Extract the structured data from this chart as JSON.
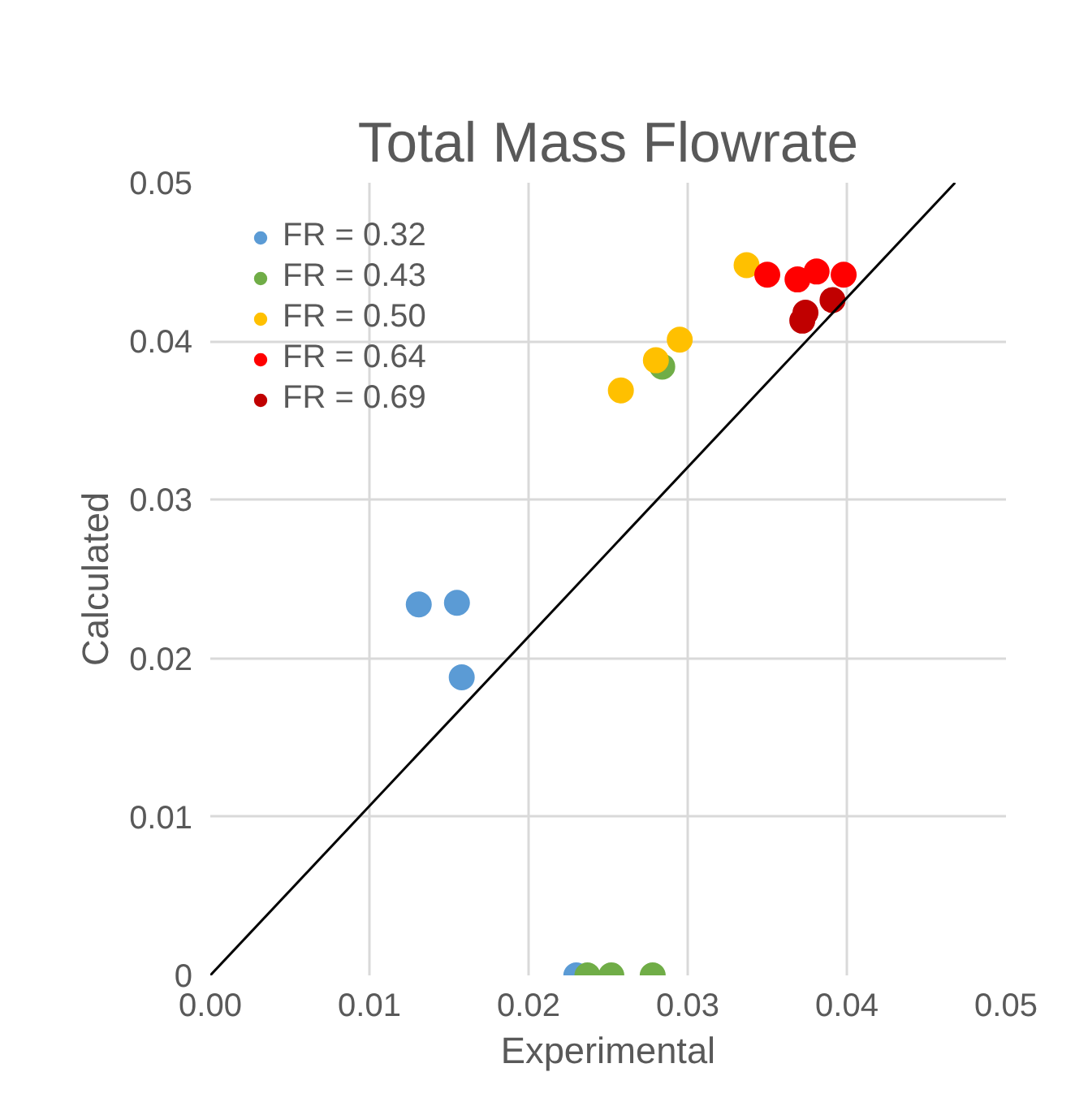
{
  "chart_data": {
    "type": "scatter",
    "title": "Total Mass Flowrate",
    "xlabel": "Experimental",
    "ylabel": "Calculated",
    "xlim": [
      0,
      0.05
    ],
    "ylim": [
      0,
      0.05
    ],
    "xticks": [
      {
        "value": 0,
        "label": "0.00"
      },
      {
        "value": 0.01,
        "label": "0.01"
      },
      {
        "value": 0.02,
        "label": "0.02"
      },
      {
        "value": 0.03,
        "label": "0.03"
      },
      {
        "value": 0.04,
        "label": "0.04"
      },
      {
        "value": 0.05,
        "label": "0.05"
      }
    ],
    "yticks": [
      0,
      0.01,
      0.02,
      0.03,
      0.04,
      0.05
    ],
    "grid": true,
    "legend": "top left",
    "marker": "circle",
    "series": [
      {
        "name": "FR = 0.32",
        "color": "#5b9bd5",
        "x": [
          0.0131,
          0.0155,
          0.0158,
          0.023
        ],
        "values": [
          0.0234,
          0.0235,
          0.0188,
          0
        ]
      },
      {
        "name": "FR = 0.43",
        "color": "#70ad47",
        "x": [
          0.0284,
          0.0237,
          0.0252,
          0.0278
        ],
        "values": [
          0.0384,
          0,
          0,
          0
        ]
      },
      {
        "name": "FR = 0.50",
        "color": "#ffc000",
        "x": [
          0.0337,
          0.0295,
          0.028,
          0.0258
        ],
        "values": [
          0.0448,
          0.0401,
          0.0388,
          0.0369
        ]
      },
      {
        "name": "FR = 0.64",
        "color": "#ff0000",
        "x": [
          0.035,
          0.0369,
          0.0381,
          0.0398
        ],
        "values": [
          0.0442,
          0.0439,
          0.0444,
          0.0442
        ]
      },
      {
        "name": "FR = 0.69",
        "color": "#c00000",
        "x": [
          0.0391,
          0.0374,
          0.0372
        ],
        "values": [
          0.0426,
          0.0418,
          0.0413
        ]
      },
      {
        "type": "line",
        "marker": "none",
        "color": "#000000",
        "x": [
          0,
          0.0468
        ],
        "values": [
          0,
          0.05
        ]
      }
    ]
  }
}
